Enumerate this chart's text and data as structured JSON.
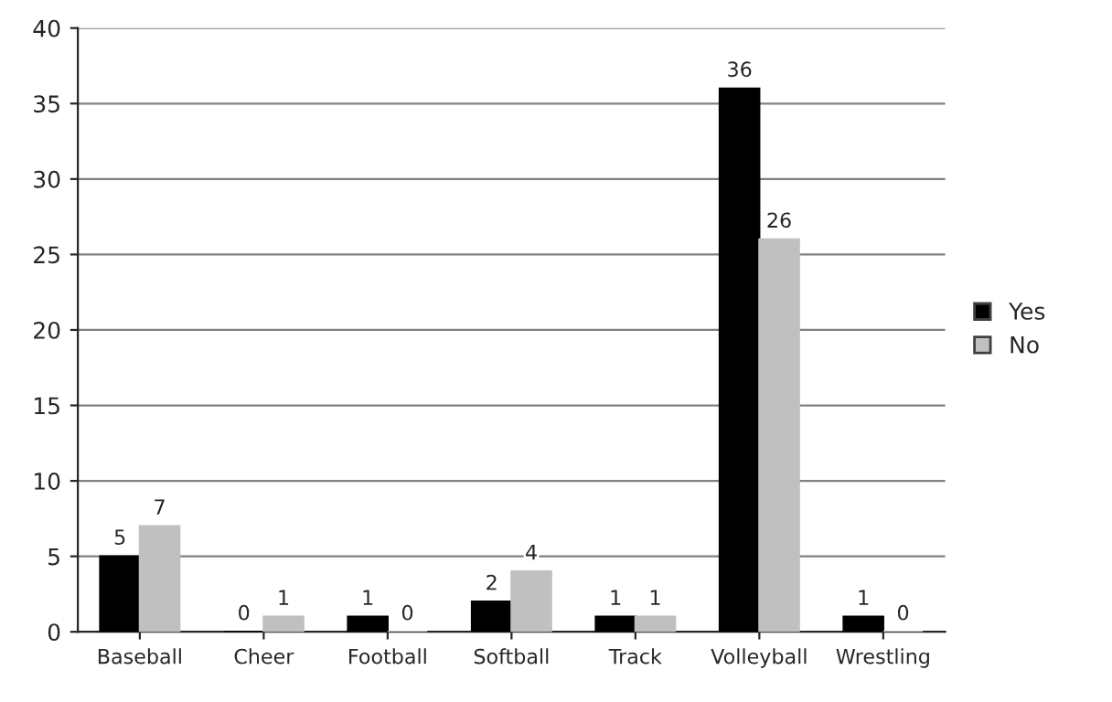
{
  "chart_data": {
    "type": "bar",
    "categories": [
      "Baseball",
      "Cheer",
      "Football",
      "Softball",
      "Track",
      "Volleyball",
      "Wrestling"
    ],
    "series": [
      {
        "name": "Yes",
        "color": "#000000",
        "values": [
          5,
          0,
          1,
          2,
          1,
          36,
          1
        ]
      },
      {
        "name": "No",
        "color": "#c0c0c0",
        "values": [
          7,
          1,
          0,
          4,
          1,
          26,
          0
        ]
      }
    ],
    "ylim": [
      0,
      40
    ],
    "yticks": [
      0,
      5,
      10,
      15,
      20,
      25,
      30,
      35,
      40
    ],
    "grid": "y",
    "legend": "right",
    "data_labels": true
  }
}
